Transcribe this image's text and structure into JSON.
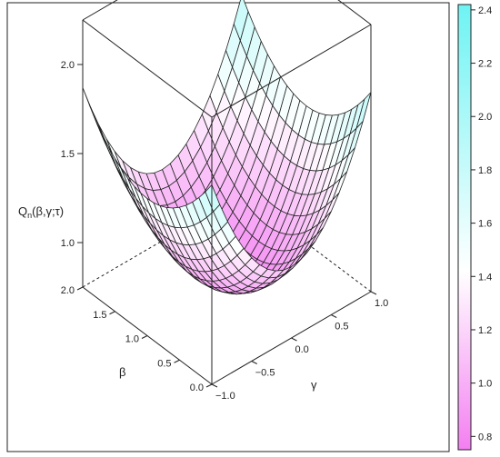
{
  "chart_data": {
    "type": "surface3d",
    "title": "",
    "zlabel": "Q",
    "zlabel_sub": "n",
    "zlabel_args": "(β,γ;τ)",
    "xlabel": "β",
    "ylabel": "γ",
    "xlim": [
      0.0,
      2.0
    ],
    "ylim": [
      -1.0,
      1.0
    ],
    "zlim": [
      0.75,
      2.25
    ],
    "x_ticks": [
      "0.0",
      "0.5",
      "1.0",
      "1.5",
      "2.0"
    ],
    "y_ticks": [
      "−1.0",
      "−0.5",
      "0.0",
      "0.5",
      "1.0"
    ],
    "z_ticks": [
      "1.0",
      "1.5",
      "2.0"
    ],
    "surface": {
      "description_formula": "z = 0.8 + 0.35*(b-1)^2 + 0.72*g^2",
      "corner_values": [
        {
          "beta": 0.0,
          "gamma": -1.0,
          "z": 1.87
        },
        {
          "beta": 2.0,
          "gamma": -1.0,
          "z": 1.87
        },
        {
          "beta": 0.0,
          "gamma": 1.0,
          "z": 1.87
        },
        {
          "beta": 2.0,
          "gamma": 1.0,
          "z": 1.87
        },
        {
          "beta": 1.0,
          "gamma": 0.0,
          "z": 0.8
        }
      ],
      "grid_lines_per_axis": 21
    },
    "colorbar": {
      "ticks": [
        "0.8",
        "1.0",
        "1.2",
        "1.4",
        "1.6",
        "1.8",
        "2.0",
        "2.2",
        "2.4"
      ],
      "range": [
        0.75,
        2.42
      ],
      "low_color": "#f47ff2",
      "mid_color": "#ffffff",
      "high_color": "#6ff3f3"
    },
    "grid": false
  }
}
